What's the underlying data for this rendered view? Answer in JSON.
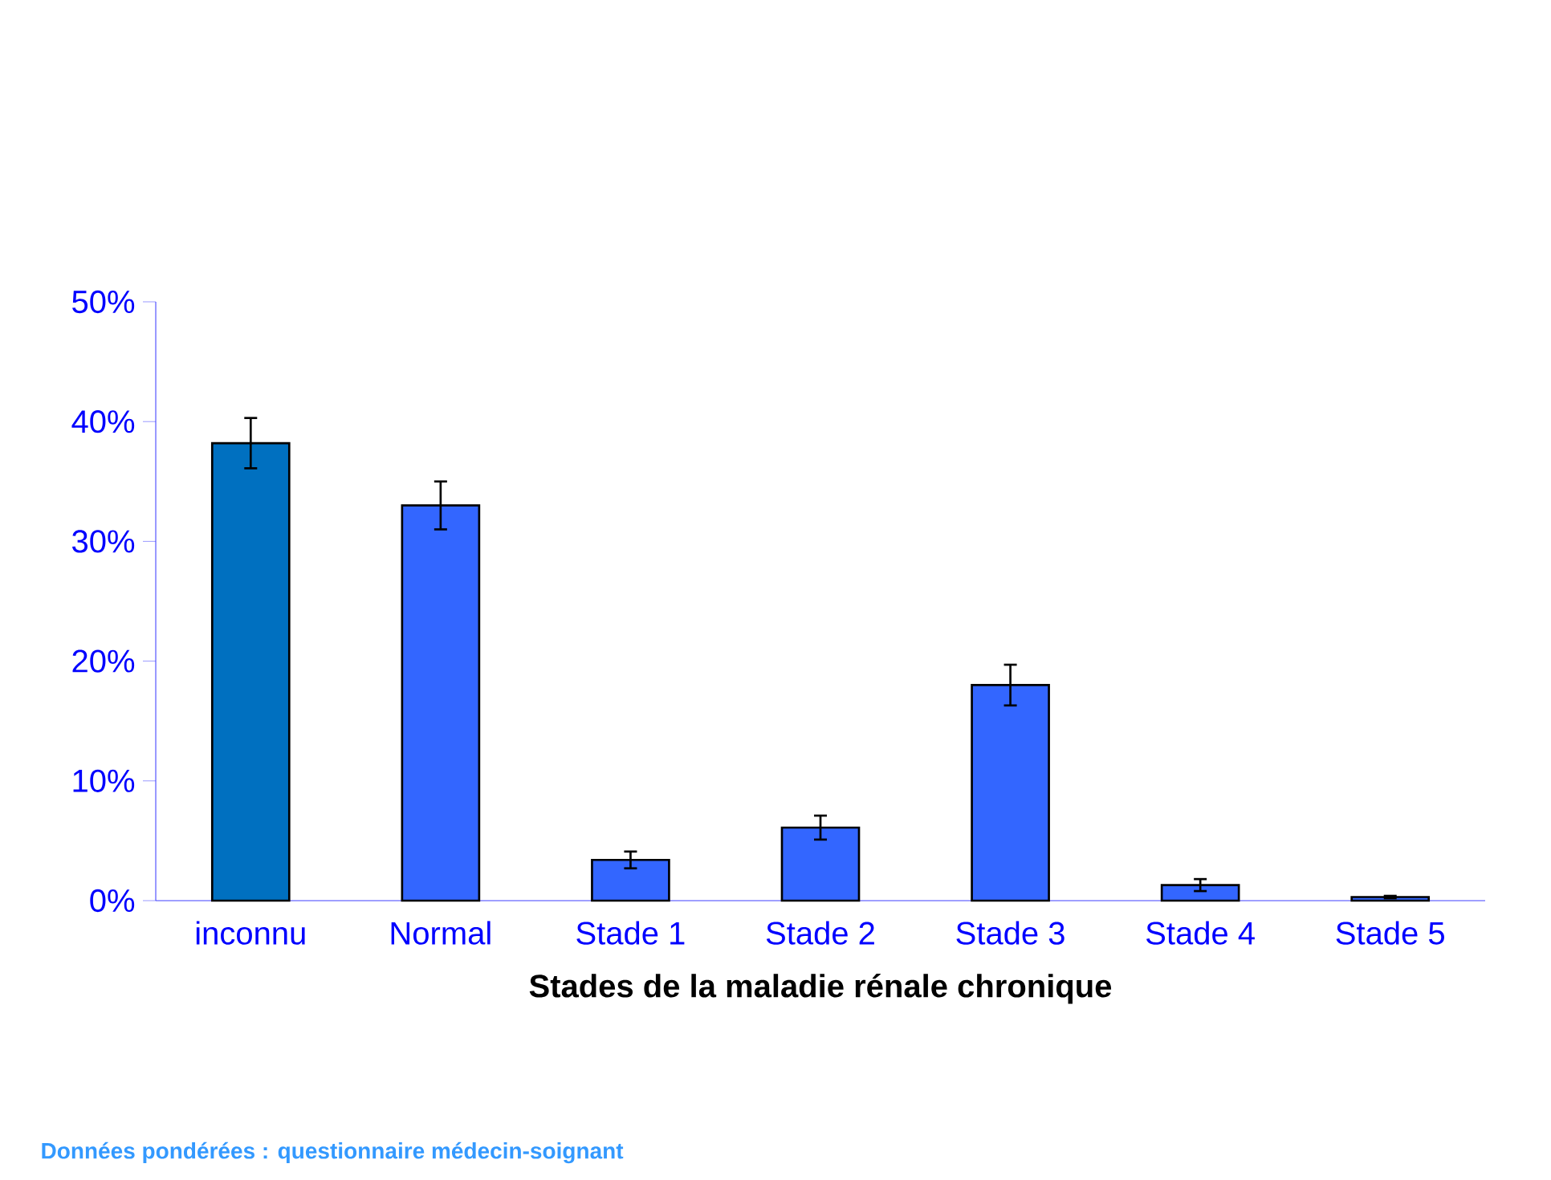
{
  "chart_data": {
    "type": "bar",
    "categories": [
      "inconnu",
      "Normal",
      "Stade 1",
      "Stade 2",
      "Stade 3",
      "Stade 4",
      "Stade 5"
    ],
    "values": [
      38.2,
      33.0,
      3.4,
      6.1,
      18.0,
      1.3,
      0.3
    ],
    "errors": [
      2.1,
      2.0,
      0.7,
      1.0,
      1.7,
      0.5,
      0.1
    ],
    "colors": [
      "#0070c0",
      "#3366ff",
      "#3366ff",
      "#3366ff",
      "#3366ff",
      "#3366ff",
      "#3366ff"
    ],
    "xlabel": "Stades de la maladie rénale chronique",
    "ylim": [
      0,
      50
    ],
    "yticks": [
      {
        "value": 0,
        "label": "0%"
      },
      {
        "value": 10,
        "label": "10%"
      },
      {
        "value": 20,
        "label": "20%"
      },
      {
        "value": 30,
        "label": "30%"
      },
      {
        "value": 40,
        "label": "40%"
      },
      {
        "value": 50,
        "label": "50%"
      }
    ],
    "annotations": [
      "Données pondérées : questionnaire médecin-soignant"
    ]
  }
}
